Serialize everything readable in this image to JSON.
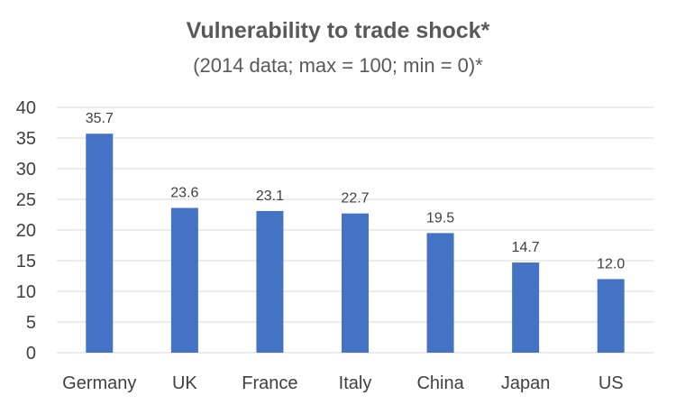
{
  "chart_data": {
    "type": "bar",
    "title": "Vulnerability to trade shock*",
    "subtitle": "(2014 data; max = 100; min = 0)*",
    "categories": [
      "Germany",
      "UK",
      "France",
      "Italy",
      "China",
      "Japan",
      "US"
    ],
    "values": [
      35.7,
      23.6,
      23.1,
      22.7,
      19.5,
      14.7,
      12.0
    ],
    "data_labels": [
      "35.7",
      "23.6",
      "23.1",
      "22.7",
      "19.5",
      "14.7",
      "12.0"
    ],
    "ylim": [
      0,
      40
    ],
    "yticks": [
      0,
      5,
      10,
      15,
      20,
      25,
      30,
      35,
      40
    ],
    "xlabel": "",
    "ylabel": "",
    "grid": true,
    "legend": "none",
    "bar_color": "#4472C4",
    "grid_color": "#D9D9D9",
    "text_color": "#404040"
  }
}
